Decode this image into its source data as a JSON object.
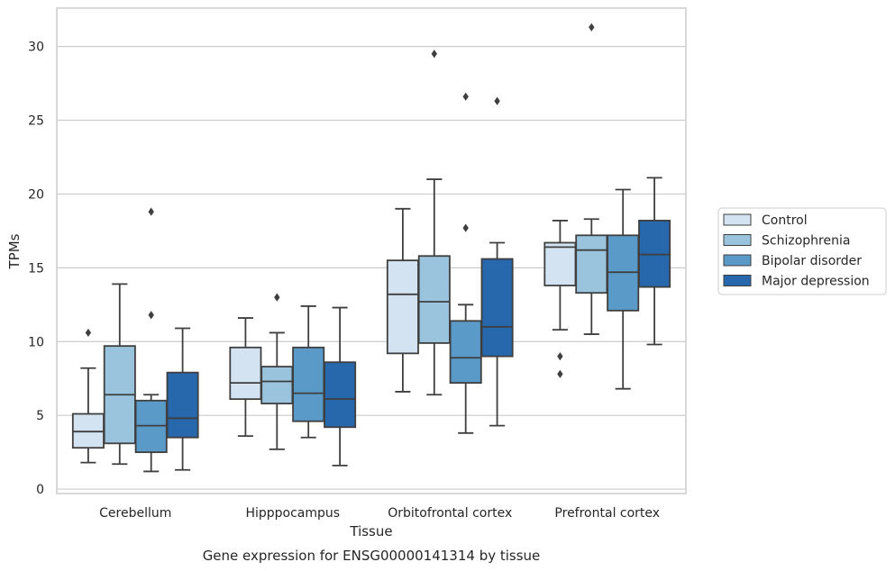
{
  "chart_data": {
    "type": "box",
    "title": "",
    "caption": "Gene expression for ENSG00000141314 by tissue",
    "xlabel": "Tissue",
    "ylabel": "TPMs",
    "ylim": [
      -0.3,
      32.6
    ],
    "yticks": [
      0,
      5,
      10,
      15,
      20,
      25,
      30
    ],
    "grid": "horizontal",
    "legend_position": "right",
    "categories": [
      "Cerebellum",
      "Hipppocampus",
      "Orbitofrontal cortex",
      "Prefrontal cortex"
    ],
    "series": [
      {
        "name": "Control",
        "color": "#d3e3f2",
        "boxes": [
          {
            "whisker_low": 1.8,
            "q1": 2.8,
            "median": 3.9,
            "q3": 5.1,
            "whisker_high": 8.2,
            "outliers": [
              10.6
            ]
          },
          {
            "whisker_low": 3.6,
            "q1": 6.1,
            "median": 7.2,
            "q3": 9.6,
            "whisker_high": 11.6,
            "outliers": []
          },
          {
            "whisker_low": 6.6,
            "q1": 9.2,
            "median": 13.2,
            "q3": 15.5,
            "whisker_high": 19.0,
            "outliers": []
          },
          {
            "whisker_low": 10.8,
            "q1": 13.8,
            "median": 16.4,
            "q3": 16.7,
            "whisker_high": 18.2,
            "outliers": [
              9.0,
              7.8
            ]
          }
        ]
      },
      {
        "name": "Schizophrenia",
        "color": "#9ac3de",
        "boxes": [
          {
            "whisker_low": 1.7,
            "q1": 3.1,
            "median": 6.4,
            "q3": 9.7,
            "whisker_high": 13.9,
            "outliers": []
          },
          {
            "whisker_low": 2.7,
            "q1": 5.8,
            "median": 7.3,
            "q3": 8.3,
            "whisker_high": 10.6,
            "outliers": [
              13.0
            ]
          },
          {
            "whisker_low": 6.4,
            "q1": 9.9,
            "median": 12.7,
            "q3": 15.8,
            "whisker_high": 21.0,
            "outliers": [
              29.5
            ]
          },
          {
            "whisker_low": 10.5,
            "q1": 13.3,
            "median": 16.2,
            "q3": 17.2,
            "whisker_high": 18.3,
            "outliers": [
              31.3
            ]
          }
        ]
      },
      {
        "name": "Bipolar disorder",
        "color": "#5a9ac8",
        "boxes": [
          {
            "whisker_low": 1.2,
            "q1": 2.5,
            "median": 4.3,
            "q3": 6.0,
            "whisker_high": 6.4,
            "outliers": [
              11.8,
              18.8
            ]
          },
          {
            "whisker_low": 3.5,
            "q1": 4.6,
            "median": 6.5,
            "q3": 9.6,
            "whisker_high": 12.4,
            "outliers": []
          },
          {
            "whisker_low": 3.8,
            "q1": 7.2,
            "median": 8.9,
            "q3": 11.4,
            "whisker_high": 12.5,
            "outliers": [
              17.7,
              26.6
            ]
          },
          {
            "whisker_low": 6.8,
            "q1": 12.1,
            "median": 14.7,
            "q3": 17.2,
            "whisker_high": 20.3,
            "outliers": []
          }
        ]
      },
      {
        "name": "Major depression",
        "color": "#2767ac",
        "boxes": [
          {
            "whisker_low": 1.3,
            "q1": 3.5,
            "median": 4.8,
            "q3": 7.9,
            "whisker_high": 10.9,
            "outliers": []
          },
          {
            "whisker_low": 1.6,
            "q1": 4.2,
            "median": 6.1,
            "q3": 8.6,
            "whisker_high": 12.3,
            "outliers": []
          },
          {
            "whisker_low": 4.3,
            "q1": 9.0,
            "median": 11.0,
            "q3": 15.6,
            "whisker_high": 16.7,
            "outliers": [
              26.3
            ]
          },
          {
            "whisker_low": 9.8,
            "q1": 13.7,
            "median": 15.9,
            "q3": 18.2,
            "whisker_high": 21.1,
            "outliers": []
          }
        ]
      }
    ]
  }
}
